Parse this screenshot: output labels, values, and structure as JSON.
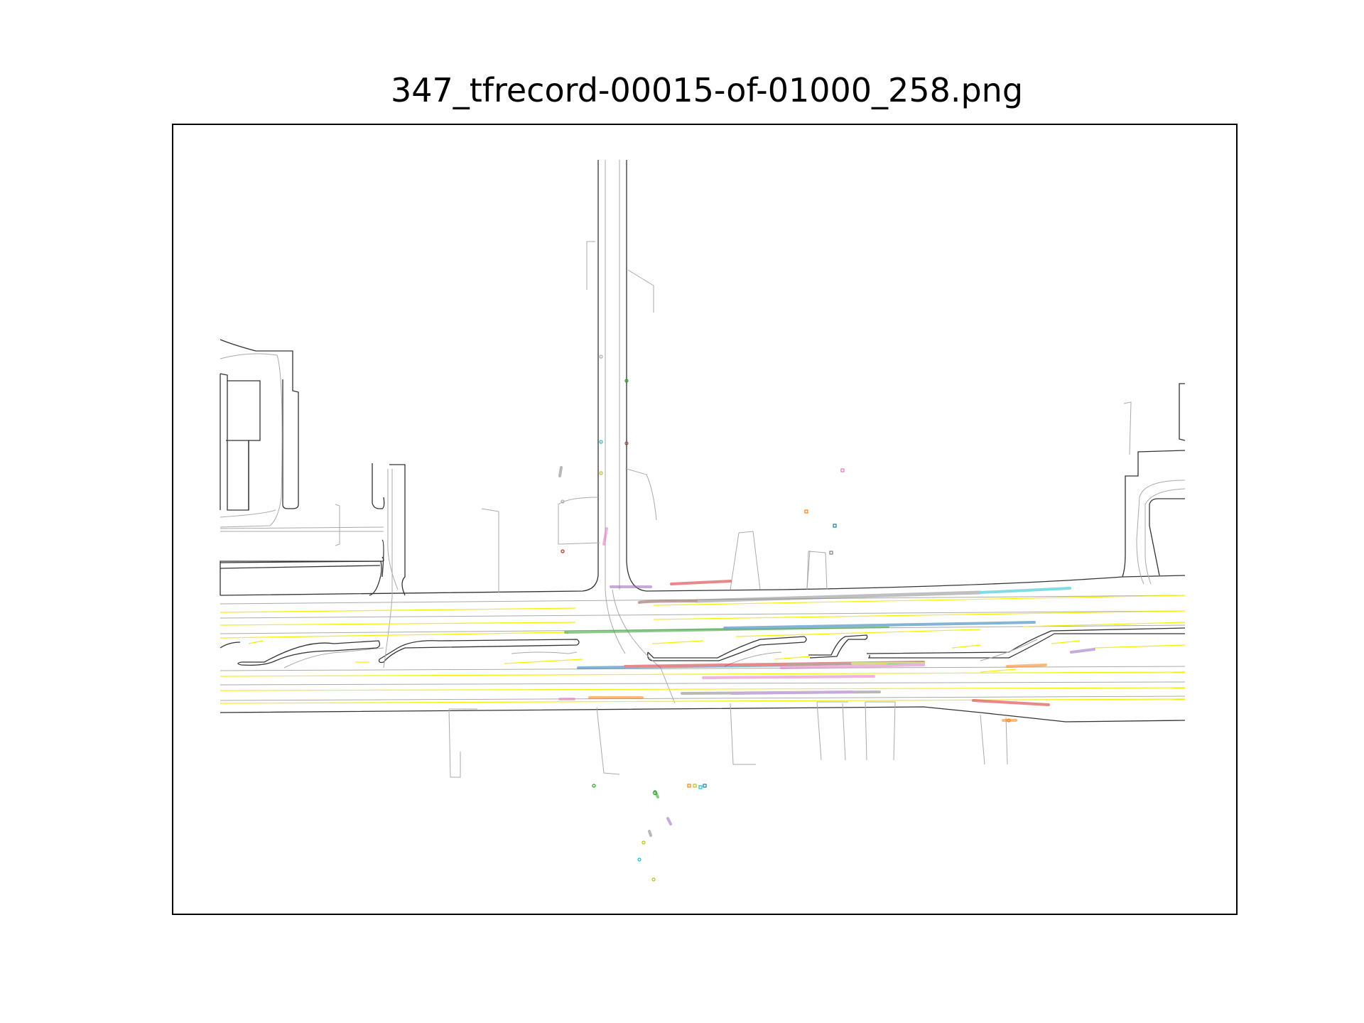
{
  "figure": {
    "title": "347_tfrecord-00015-of-01000_258.png"
  },
  "colors": {
    "road_edge": "#333333",
    "lane_center": "#aaaaaa",
    "lane_marking": "#f5f000",
    "trajectory_palette": [
      "#1f77b4",
      "#ff7f0e",
      "#2ca02c",
      "#d62728",
      "#9467bd",
      "#8c564b",
      "#e377c2",
      "#7f7f7f",
      "#bcbd22",
      "#17becf"
    ]
  },
  "scene": {
    "description_layers": [
      "road-edges",
      "lane-centerlines",
      "lane-markings",
      "agent-trajectories",
      "agent-markers"
    ]
  }
}
